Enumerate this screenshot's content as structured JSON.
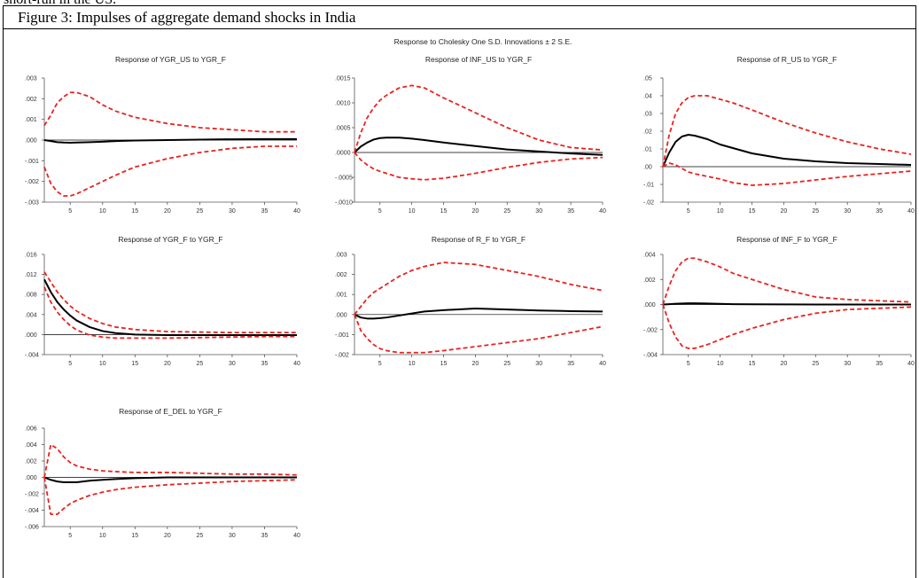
{
  "page_text": "short-run in the US.",
  "caption": "Figure 3: Impulses of aggregate demand shocks in India",
  "figure_title": "Response to Cholesky One S.D. Innovations ± 2 S.E.",
  "chart_data": [
    {
      "type": "line",
      "title": "Response of YGR_US to YGR_F",
      "x": [
        1,
        2,
        3,
        4,
        5,
        6,
        8,
        10,
        12,
        15,
        20,
        25,
        30,
        35,
        40
      ],
      "xlim": [
        1,
        40
      ],
      "xticks": [
        5,
        10,
        15,
        20,
        25,
        30,
        35,
        40
      ],
      "ylim": [
        -0.003,
        0.003
      ],
      "yticks": [
        {
          "value": -0.003,
          "label": "-.003"
        },
        {
          "value": -0.002,
          "label": "-.002"
        },
        {
          "value": -0.001,
          "label": "-.001"
        },
        {
          "value": 0,
          "label": ".000"
        },
        {
          "value": 0.001,
          "label": ".001"
        },
        {
          "value": 0.002,
          "label": ".002"
        },
        {
          "value": 0.003,
          "label": ".003"
        }
      ],
      "series": [
        {
          "color": "#000000",
          "dashed": false,
          "values": [
            0,
            -5e-05,
            -0.0001,
            -0.00012,
            -0.00013,
            -0.00012,
            -0.0001,
            -8e-05,
            -5e-05,
            -2e-05,
            0,
            2e-05,
            4e-05,
            5e-05,
            5e-05
          ]
        },
        {
          "color": "#e8231f",
          "dashed": true,
          "values": [
            0.0007,
            0.0012,
            0.0018,
            0.0021,
            0.0023,
            0.0023,
            0.0021,
            0.0017,
            0.0014,
            0.0011,
            0.0008,
            0.0006,
            0.0005,
            0.0004,
            0.0004
          ]
        },
        {
          "color": "#e8231f",
          "dashed": true,
          "values": [
            -0.0013,
            -0.0021,
            -0.0025,
            -0.0027,
            -0.0027,
            -0.0026,
            -0.0023,
            -0.002,
            -0.0017,
            -0.0013,
            -0.0009,
            -0.0006,
            -0.0004,
            -0.0003,
            -0.0003
          ]
        }
      ]
    },
    {
      "type": "line",
      "title": "Response of INF_US to YGR_F",
      "x": [
        1,
        2,
        3,
        4,
        5,
        6,
        8,
        10,
        12,
        15,
        20,
        25,
        30,
        35,
        40
      ],
      "xlim": [
        1,
        40
      ],
      "xticks": [
        5,
        10,
        15,
        20,
        25,
        30,
        35,
        40
      ],
      "ylim": [
        -0.001,
        0.0015
      ],
      "yticks": [
        {
          "value": -0.001,
          "label": "-.0010"
        },
        {
          "value": -0.0005,
          "label": "-.0005"
        },
        {
          "value": 0,
          "label": ".0000"
        },
        {
          "value": 0.0005,
          "label": ".0005"
        },
        {
          "value": 0.001,
          "label": ".0010"
        },
        {
          "value": 0.0015,
          "label": ".0015"
        }
      ],
      "series": [
        {
          "color": "#000000",
          "dashed": false,
          "values": [
            0,
            0.00012,
            0.0002,
            0.00026,
            0.00029,
            0.0003,
            0.0003,
            0.00028,
            0.00025,
            0.0002,
            0.00013,
            6e-05,
            2e-05,
            -2e-05,
            -5e-05
          ]
        },
        {
          "color": "#e8231f",
          "dashed": true,
          "values": [
            0,
            0.0004,
            0.0007,
            0.0009,
            0.00105,
            0.00115,
            0.0013,
            0.00135,
            0.0013,
            0.0011,
            0.0008,
            0.0005,
            0.00025,
            0.0001,
            5e-05
          ]
        },
        {
          "color": "#e8231f",
          "dashed": true,
          "values": [
            0,
            -0.00015,
            -0.00025,
            -0.00033,
            -0.00038,
            -0.00042,
            -0.0005,
            -0.00053,
            -0.00055,
            -0.00052,
            -0.00042,
            -0.0003,
            -0.0002,
            -0.00013,
            -0.0001
          ]
        }
      ]
    },
    {
      "type": "line",
      "title": "Response of R_US to YGR_F",
      "x": [
        1,
        2,
        3,
        4,
        5,
        6,
        8,
        10,
        12,
        15,
        20,
        25,
        30,
        35,
        40
      ],
      "xlim": [
        1,
        40
      ],
      "xticks": [
        5,
        10,
        15,
        20,
        25,
        30,
        35,
        40
      ],
      "ylim": [
        -0.02,
        0.05
      ],
      "yticks": [
        {
          "value": -0.02,
          "label": "-.02"
        },
        {
          "value": -0.01,
          "label": "-.01"
        },
        {
          "value": 0,
          "label": ".00"
        },
        {
          "value": 0.01,
          "label": ".01"
        },
        {
          "value": 0.02,
          "label": ".02"
        },
        {
          "value": 0.03,
          "label": ".03"
        },
        {
          "value": 0.04,
          "label": ".04"
        },
        {
          "value": 0.05,
          "label": ".05"
        }
      ],
      "series": [
        {
          "color": "#000000",
          "dashed": false,
          "values": [
            0,
            0.008,
            0.014,
            0.017,
            0.018,
            0.0175,
            0.0155,
            0.0125,
            0.0105,
            0.0075,
            0.0045,
            0.003,
            0.002,
            0.0015,
            0.001
          ]
        },
        {
          "color": "#e8231f",
          "dashed": true,
          "values": [
            0,
            0.018,
            0.03,
            0.036,
            0.039,
            0.04,
            0.04,
            0.038,
            0.036,
            0.032,
            0.025,
            0.019,
            0.014,
            0.01,
            0.007
          ]
        },
        {
          "color": "#e8231f",
          "dashed": true,
          "values": [
            0,
            0.002,
            0.001,
            -0.001,
            -0.003,
            -0.004,
            -0.0055,
            -0.007,
            -0.009,
            -0.0105,
            -0.0095,
            -0.0075,
            -0.0055,
            -0.004,
            -0.0025
          ]
        }
      ]
    },
    {
      "type": "line",
      "title": "Response of YGR_F to YGR_F",
      "x": [
        1,
        2,
        3,
        4,
        5,
        6,
        8,
        10,
        12,
        15,
        20,
        25,
        30,
        35,
        40
      ],
      "xlim": [
        1,
        40
      ],
      "xticks": [
        5,
        10,
        15,
        20,
        25,
        30,
        35,
        40
      ],
      "ylim": [
        -0.004,
        0.016
      ],
      "yticks": [
        {
          "value": -0.004,
          "label": "-.004"
        },
        {
          "value": 0,
          "label": ".000"
        },
        {
          "value": 0.004,
          "label": ".004"
        },
        {
          "value": 0.008,
          "label": ".008"
        },
        {
          "value": 0.012,
          "label": ".012"
        },
        {
          "value": 0.016,
          "label": ".016"
        }
      ],
      "series": [
        {
          "color": "#000000",
          "dashed": false,
          "values": [
            0.011,
            0.0085,
            0.0065,
            0.005,
            0.0038,
            0.0028,
            0.0015,
            0.0007,
            0.0003,
            0,
            -0.0001,
            -0.0001,
            -0.0001,
            -0.0001,
            -0.0001
          ]
        },
        {
          "color": "#e8231f",
          "dashed": true,
          "values": [
            0.0125,
            0.0105,
            0.0085,
            0.007,
            0.0057,
            0.0047,
            0.0032,
            0.0022,
            0.0015,
            0.001,
            0.0006,
            0.0005,
            0.0004,
            0.0004,
            0.0004
          ]
        },
        {
          "color": "#e8231f",
          "dashed": true,
          "values": [
            0.0095,
            0.0065,
            0.0045,
            0.003,
            0.0018,
            0.0009,
            -0.0001,
            -0.0005,
            -0.0007,
            -0.0007,
            -0.0007,
            -0.0006,
            -0.0005,
            -0.0004,
            -0.0004
          ]
        }
      ]
    },
    {
      "type": "line",
      "title": "Response of R_F to YGR_F",
      "x": [
        1,
        2,
        3,
        4,
        5,
        6,
        8,
        10,
        12,
        15,
        20,
        25,
        30,
        35,
        40
      ],
      "xlim": [
        1,
        40
      ],
      "xticks": [
        5,
        10,
        15,
        20,
        25,
        30,
        35,
        40
      ],
      "ylim": [
        -0.002,
        0.003
      ],
      "yticks": [
        {
          "value": -0.002,
          "label": "-.002"
        },
        {
          "value": -0.001,
          "label": "-.001"
        },
        {
          "value": 0,
          "label": ".000"
        },
        {
          "value": 0.001,
          "label": ".001"
        },
        {
          "value": 0.002,
          "label": ".002"
        },
        {
          "value": 0.003,
          "label": ".003"
        }
      ],
      "series": [
        {
          "color": "#000000",
          "dashed": false,
          "values": [
            0,
            -0.00015,
            -0.0002,
            -0.0002,
            -0.00018,
            -0.00015,
            -5e-05,
            5e-05,
            0.00015,
            0.00022,
            0.0003,
            0.00025,
            0.0002,
            0.00017,
            0.00015
          ]
        },
        {
          "color": "#e8231f",
          "dashed": true,
          "values": [
            0,
            0.0004,
            0.0008,
            0.0011,
            0.0013,
            0.0015,
            0.0019,
            0.0022,
            0.0024,
            0.0026,
            0.0025,
            0.0022,
            0.0019,
            0.0015,
            0.0012
          ]
        },
        {
          "color": "#e8231f",
          "dashed": true,
          "values": [
            0,
            -0.0008,
            -0.0012,
            -0.0015,
            -0.0017,
            -0.0018,
            -0.0019,
            -0.0019,
            -0.0019,
            -0.0018,
            -0.0016,
            -0.0014,
            -0.0012,
            -0.0009,
            -0.0006
          ]
        }
      ]
    },
    {
      "type": "line",
      "title": "Response of INF_F to YGR_F",
      "x": [
        1,
        2,
        3,
        4,
        5,
        6,
        8,
        10,
        12,
        15,
        20,
        25,
        30,
        35,
        40
      ],
      "xlim": [
        1,
        40
      ],
      "xticks": [
        5,
        10,
        15,
        20,
        25,
        30,
        35,
        40
      ],
      "ylim": [
        -0.004,
        0.004
      ],
      "yticks": [
        {
          "value": -0.004,
          "label": "-.004"
        },
        {
          "value": -0.002,
          "label": "-.002"
        },
        {
          "value": 0,
          "label": ".000"
        },
        {
          "value": 0.002,
          "label": ".002"
        },
        {
          "value": 0.004,
          "label": ".004"
        }
      ],
      "series": [
        {
          "color": "#000000",
          "dashed": false,
          "values": [
            0,
            3e-05,
            6e-05,
            8e-05,
            0.0001,
            0.0001,
            8e-05,
            5e-05,
            3e-05,
            2e-05,
            1e-05,
            0,
            0,
            0,
            0
          ]
        },
        {
          "color": "#e8231f",
          "dashed": true,
          "values": [
            0,
            0.0015,
            0.0027,
            0.0034,
            0.0037,
            0.0037,
            0.0034,
            0.003,
            0.0025,
            0.002,
            0.0012,
            0.0006,
            0.0004,
            0.0003,
            0.0002
          ]
        },
        {
          "color": "#e8231f",
          "dashed": true,
          "values": [
            0,
            -0.0015,
            -0.0026,
            -0.0033,
            -0.0035,
            -0.0035,
            -0.0032,
            -0.0028,
            -0.0024,
            -0.0019,
            -0.0012,
            -0.0007,
            -0.0004,
            -0.0003,
            -0.0002
          ]
        }
      ]
    },
    {
      "type": "line",
      "title": "Response of E_DEL to YGR_F",
      "x": [
        1,
        2,
        3,
        4,
        5,
        6,
        8,
        10,
        12,
        15,
        20,
        25,
        30,
        35,
        40
      ],
      "xlim": [
        1,
        40
      ],
      "xticks": [
        5,
        10,
        15,
        20,
        25,
        30,
        35,
        40
      ],
      "ylim": [
        -0.006,
        0.006
      ],
      "yticks": [
        {
          "value": -0.006,
          "label": "-.006"
        },
        {
          "value": -0.004,
          "label": "-.004"
        },
        {
          "value": -0.002,
          "label": "-.002"
        },
        {
          "value": 0,
          "label": ".000"
        },
        {
          "value": 0.002,
          "label": ".002"
        },
        {
          "value": 0.004,
          "label": ".004"
        },
        {
          "value": 0.006,
          "label": ".006"
        }
      ],
      "series": [
        {
          "color": "#000000",
          "dashed": false,
          "values": [
            0,
            -0.0003,
            -0.0005,
            -0.0006,
            -0.0006,
            -0.0006,
            -0.0004,
            -0.0003,
            -0.0002,
            -0.0001,
            0,
            0,
            0,
            0,
            0
          ]
        },
        {
          "color": "#e8231f",
          "dashed": true,
          "values": [
            0,
            0.004,
            0.0035,
            0.0025,
            0.0018,
            0.0014,
            0.001,
            0.0008,
            0.0007,
            0.0006,
            0.0006,
            0.0005,
            0.0004,
            0.0004,
            0.0003
          ]
        },
        {
          "color": "#e8231f",
          "dashed": true,
          "values": [
            0,
            -0.0045,
            -0.0045,
            -0.0038,
            -0.0032,
            -0.0028,
            -0.0022,
            -0.0018,
            -0.0015,
            -0.0012,
            -0.0009,
            -0.0007,
            -0.0005,
            -0.0004,
            -0.0003
          ]
        }
      ]
    }
  ]
}
